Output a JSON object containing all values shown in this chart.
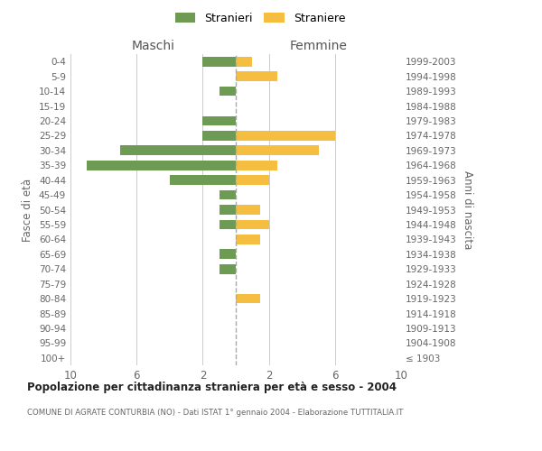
{
  "age_groups": [
    "100+",
    "95-99",
    "90-94",
    "85-89",
    "80-84",
    "75-79",
    "70-74",
    "65-69",
    "60-64",
    "55-59",
    "50-54",
    "45-49",
    "40-44",
    "35-39",
    "30-34",
    "25-29",
    "20-24",
    "15-19",
    "10-14",
    "5-9",
    "0-4"
  ],
  "birth_years": [
    "≤ 1903",
    "1904-1908",
    "1909-1913",
    "1914-1918",
    "1919-1923",
    "1924-1928",
    "1929-1933",
    "1934-1938",
    "1939-1943",
    "1944-1948",
    "1949-1953",
    "1954-1958",
    "1959-1963",
    "1964-1968",
    "1969-1973",
    "1974-1978",
    "1979-1983",
    "1984-1988",
    "1989-1993",
    "1994-1998",
    "1999-2003"
  ],
  "maschi": [
    0,
    0,
    0,
    0,
    0,
    0,
    1,
    1,
    0,
    1,
    1,
    1,
    4,
    9,
    7,
    2,
    2,
    0,
    1,
    0,
    2
  ],
  "femmine": [
    0,
    0,
    0,
    0,
    1.5,
    0,
    0,
    0,
    1.5,
    2,
    1.5,
    0,
    2,
    2.5,
    5,
    6,
    0,
    0,
    0,
    2.5,
    1
  ],
  "maschi_color": "#6d9b54",
  "femmine_color": "#f5be41",
  "background_color": "#ffffff",
  "grid_color": "#cccccc",
  "title": "Popolazione per cittadinanza straniera per età e sesso - 2004",
  "subtitle": "COMUNE DI AGRATE CONTURBIA (NO) - Dati ISTAT 1° gennaio 2004 - Elaborazione TUTTITALIA.IT",
  "xlabel_left": "Maschi",
  "xlabel_right": "Femmine",
  "ylabel_left": "Fasce di età",
  "ylabel_right": "Anni di nascita",
  "legend_maschi": "Stranieri",
  "legend_femmine": "Straniere",
  "xlim": 10
}
